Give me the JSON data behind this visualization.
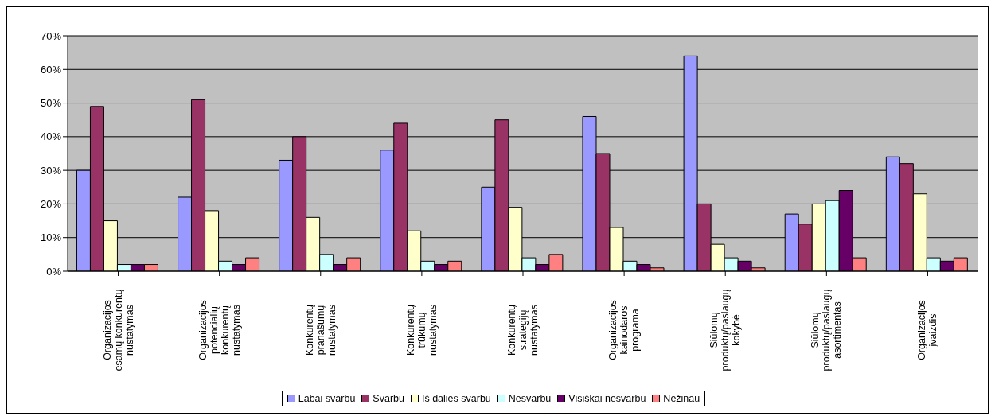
{
  "chart_data": {
    "type": "bar",
    "categories": [
      "Organizacijos\nesamų konkurentų\nnustatymas",
      "Organizacijos\npotencialių\nkonkurentų\nnustatymas",
      "Konkurentų\npranašumų\nnustatymas",
      "Konkurentų\ntrūkumų\nnustatymas",
      "Konkurentų\nstrategijų\nnustatymas",
      "Organizacijos\nkainodaros\nprograma",
      "Siūlomų\nproduktų/paslaugų\nkokybė",
      "Siūlomų\nproduktų/paslaugų\nasortimentas",
      "Organizacijos\nįvaizdis"
    ],
    "series": [
      {
        "name": "Labai svarbu",
        "color": "#9999ff",
        "values": [
          30,
          22,
          33,
          36,
          25,
          46,
          64,
          17,
          34
        ]
      },
      {
        "name": "Svarbu",
        "color": "#993366",
        "values": [
          49,
          51,
          40,
          44,
          45,
          35,
          20,
          14,
          32
        ]
      },
      {
        "name": "Iš dalies svarbu",
        "color": "#ffffcc",
        "values": [
          15,
          18,
          16,
          12,
          19,
          13,
          8,
          20,
          23
        ]
      },
      {
        "name": "Nesvarbu",
        "color": "#ccffff",
        "values": [
          2,
          3,
          5,
          3,
          4,
          3,
          4,
          21,
          4
        ]
      },
      {
        "name": "Visiškai nesvarbu",
        "color": "#660066",
        "values": [
          2,
          2,
          2,
          2,
          2,
          2,
          3,
          24,
          3
        ]
      },
      {
        "name": "Nežinau",
        "color": "#ff8080",
        "values": [
          2,
          4,
          4,
          3,
          5,
          1,
          1,
          4,
          4
        ]
      }
    ],
    "ylim": [
      0,
      70
    ],
    "yticks": [
      {
        "value": 0,
        "label": "0%"
      },
      {
        "value": 10,
        "label": "10%"
      },
      {
        "value": 20,
        "label": "20%"
      },
      {
        "value": 30,
        "label": "30%"
      },
      {
        "value": 40,
        "label": "40%"
      },
      {
        "value": 50,
        "label": "50%"
      },
      {
        "value": 60,
        "label": "60%"
      },
      {
        "value": 70,
        "label": "70%"
      }
    ],
    "grid": "y",
    "legend": "bottom"
  }
}
